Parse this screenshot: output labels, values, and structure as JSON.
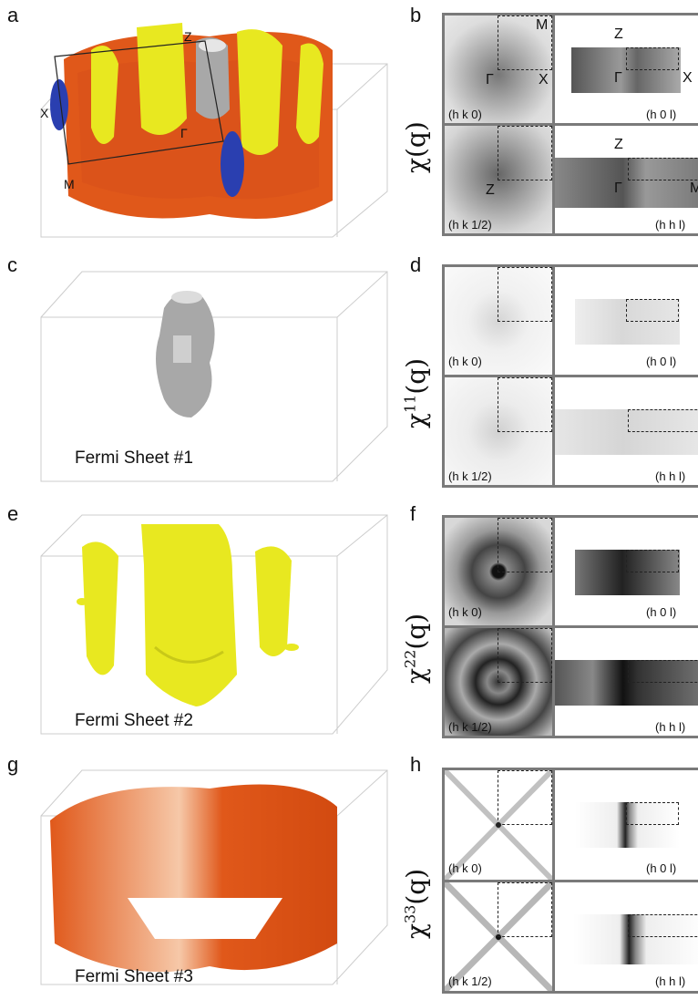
{
  "panels": {
    "a": "a",
    "b": "b",
    "c": "c",
    "d": "d",
    "e": "e",
    "f": "f",
    "g": "g",
    "h": "h"
  },
  "axis_labels_3d": {
    "Z": "Z",
    "Gamma": "Γ",
    "X": "X",
    "M": "M"
  },
  "fermi_sheets": [
    "Fermi Sheet #1",
    "Fermi Sheet #2",
    "Fermi Sheet #3"
  ],
  "chi_labels": {
    "b": {
      "base": "χ(q)",
      "sup": ""
    },
    "d": {
      "base": "χ",
      "sup": "11",
      "tail": "(q)"
    },
    "f": {
      "base": "χ",
      "sup": "22",
      "tail": "(q)"
    },
    "h": {
      "base": "χ",
      "sup": "33",
      "tail": "(q)"
    }
  },
  "plane_labels": {
    "hk0": "(h k 0)",
    "h0l": "(h 0 l)",
    "hk12": "(h k 1/2)",
    "hhl": "(h h l)"
  },
  "bz_points": {
    "M": "M",
    "X": "X",
    "Gamma": "Γ",
    "Z": "Z"
  },
  "colors": {
    "orange": "#e0581a",
    "yellow": "#e8e820",
    "blue": "#2a3fb0",
    "silver": "#a8a8a8",
    "frame": "#7a7a7a"
  }
}
